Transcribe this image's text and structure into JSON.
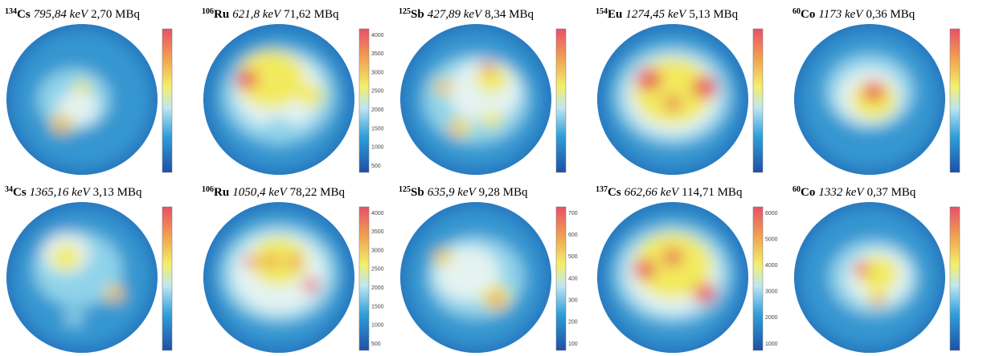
{
  "panels": [
    {
      "mass": "134",
      "element": "Cs",
      "energy": "795,84 keV",
      "activity": "2,70 MBq"
    },
    {
      "mass": "106",
      "element": "Ru",
      "energy": "621,8 keV",
      "activity": "71,62 MBq",
      "colorbar_ticks": [
        4000,
        3500,
        3000,
        2500,
        2000,
        1500,
        1000,
        500
      ]
    },
    {
      "mass": "125",
      "element": "Sb",
      "energy": "427,89 keV",
      "activity": "8,34 MBq"
    },
    {
      "mass": "154",
      "element": "Eu",
      "energy": "1274,45 keV",
      "activity": "5,13 MBq"
    },
    {
      "mass": "60",
      "element": "Co",
      "energy": "1173 keV",
      "activity": "0,36 MBq"
    },
    {
      "mass": "34",
      "element": "Cs",
      "energy": "1365,16 keV",
      "activity": "3,13 MBq"
    },
    {
      "mass": "106",
      "element": "Ru",
      "energy": "1050,4 keV",
      "activity": "78,22 MBq",
      "colorbar_ticks": [
        4000,
        3500,
        3000,
        2500,
        2000,
        1500,
        1000,
        500
      ]
    },
    {
      "mass": "125",
      "element": "Sb",
      "energy": "635,9 keV",
      "activity": "9,28 MBq",
      "colorbar_ticks": [
        700,
        600,
        500,
        400,
        300,
        200,
        100
      ]
    },
    {
      "mass": "137",
      "element": "Cs",
      "energy": "662,66 keV",
      "activity": "114,71 MBq",
      "colorbar_ticks": [
        6000,
        5000,
        4000,
        3000,
        2000,
        1000
      ]
    },
    {
      "mass": "60",
      "element": "Co",
      "energy": "1332 keV",
      "activity": "0,37 MBq"
    }
  ]
}
